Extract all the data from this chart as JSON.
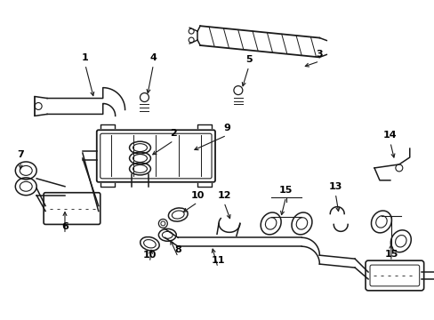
{
  "bg_color": "#ffffff",
  "lc": "#1a1a1a",
  "lw": 1.1,
  "figsize": [
    4.89,
    3.6
  ],
  "dpi": 100
}
